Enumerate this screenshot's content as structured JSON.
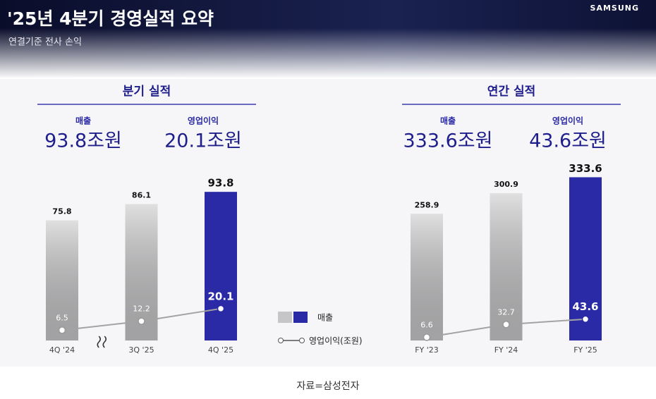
{
  "header": {
    "title": "'25년 4분기 경영실적 요약",
    "subtitle": "연결기준 전사 손익",
    "brand": "SAMSUNG"
  },
  "chart_data": [
    {
      "type": "bar",
      "title": "분기 실적",
      "kpis": [
        {
          "label": "매출",
          "value": "93.8조원"
        },
        {
          "label": "영업이익",
          "value": "20.1조원"
        }
      ],
      "categories": [
        "4Q '24",
        "3Q '25",
        "4Q '25"
      ],
      "series": [
        {
          "type": "bar",
          "values": [
            75.8,
            86.1,
            93.8
          ],
          "colors": [
            "#c6c6c8",
            "#c6c6c8",
            "#2a2aa6"
          ]
        },
        {
          "type": "line",
          "color": "#a3a3a3",
          "values": [
            6.5,
            12.2,
            20.1
          ]
        }
      ],
      "ylim": [
        0,
        105
      ],
      "axis_break": true
    },
    {
      "type": "bar",
      "title": "연간 실적",
      "kpis": [
        {
          "label": "매출",
          "value": "333.6조원"
        },
        {
          "label": "영업이익",
          "value": "43.6조원"
        }
      ],
      "categories": [
        "FY '23",
        "FY '24",
        "FY '25"
      ],
      "series": [
        {
          "type": "bar",
          "values": [
            258.9,
            300.9,
            333.6
          ],
          "colors": [
            "#c6c6c8",
            "#c6c6c8",
            "#2a2aa6"
          ]
        },
        {
          "type": "line",
          "color": "#a3a3a3",
          "values": [
            6.6,
            32.7,
            43.6
          ]
        }
      ],
      "ylim": [
        0,
        340
      ],
      "axis_break": false
    }
  ],
  "legend": {
    "items": [
      {
        "label": "매출"
      },
      {
        "label": "영업이익(조원)"
      }
    ]
  },
  "caption": "자료=삼성전자"
}
